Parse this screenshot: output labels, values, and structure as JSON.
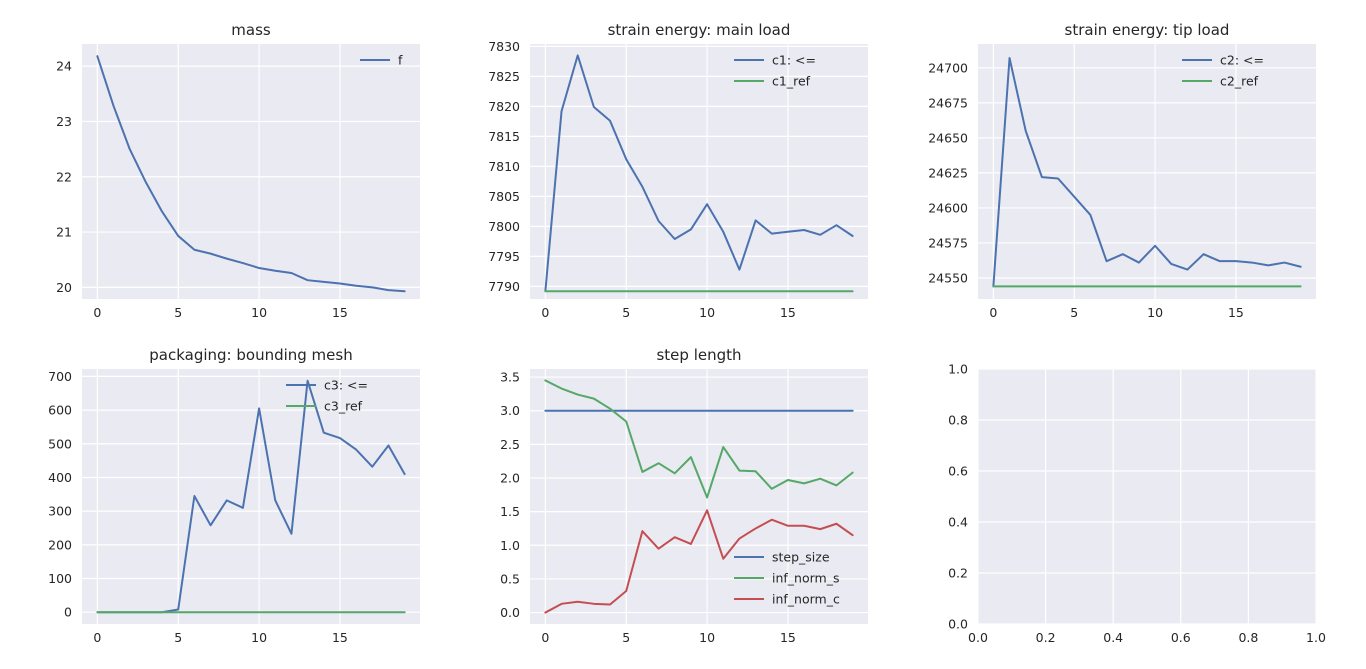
{
  "chart_data": [
    {
      "type": "line",
      "title": "mass",
      "x": [
        0,
        1,
        2,
        3,
        4,
        5,
        6,
        7,
        8,
        9,
        10,
        11,
        12,
        13,
        14,
        15,
        16,
        17,
        18,
        19
      ],
      "xlim": [
        -0.95,
        19.95
      ],
      "xticks": [
        0,
        5,
        10,
        15
      ],
      "ylim": [
        19.79,
        24.4
      ],
      "yticks": [
        20,
        21,
        22,
        23,
        24
      ],
      "grid": true,
      "legend": "top-right",
      "series": [
        {
          "name": "f",
          "color": "#4C72B0",
          "values": [
            24.18,
            23.28,
            22.5,
            21.9,
            21.37,
            20.93,
            20.68,
            20.61,
            20.52,
            20.44,
            20.35,
            20.3,
            20.26,
            20.13,
            20.1,
            20.07,
            20.03,
            20.0,
            19.95,
            19.93
          ]
        }
      ]
    },
    {
      "type": "line",
      "title": "strain energy: main load",
      "x": [
        0,
        1,
        2,
        3,
        4,
        5,
        6,
        7,
        8,
        9,
        10,
        11,
        12,
        13,
        14,
        15,
        16,
        17,
        18,
        19
      ],
      "xlim": [
        -0.95,
        19.95
      ],
      "xticks": [
        0,
        5,
        10,
        15
      ],
      "ylim": [
        7787.9,
        7830.4
      ],
      "yticks": [
        7790,
        7795,
        7800,
        7805,
        7810,
        7815,
        7820,
        7825,
        7830
      ],
      "grid": true,
      "legend": "top-right",
      "series": [
        {
          "name": "c1: <=",
          "color": "#4C72B0",
          "values": [
            7789.2,
            7819.2,
            7828.5,
            7819.9,
            7817.6,
            7811.2,
            7806.6,
            7800.9,
            7797.9,
            7799.5,
            7803.7,
            7799.1,
            7792.8,
            7801.0,
            7798.8,
            7799.1,
            7799.4,
            7798.6,
            7800.2,
            7798.4
          ]
        },
        {
          "name": "c1_ref",
          "color": "#55A868",
          "values": [
            7789.2,
            7789.2,
            7789.2,
            7789.2,
            7789.2,
            7789.2,
            7789.2,
            7789.2,
            7789.2,
            7789.2,
            7789.2,
            7789.2,
            7789.2,
            7789.2,
            7789.2,
            7789.2,
            7789.2,
            7789.2,
            7789.2,
            7789.2
          ]
        }
      ]
    },
    {
      "type": "line",
      "title": "strain energy: tip load",
      "x": [
        0,
        1,
        2,
        3,
        4,
        5,
        6,
        7,
        8,
        9,
        10,
        11,
        12,
        13,
        14,
        15,
        16,
        17,
        18,
        19
      ],
      "xlim": [
        -0.95,
        19.95
      ],
      "xticks": [
        0,
        5,
        10,
        15
      ],
      "ylim": [
        24535,
        24717
      ],
      "yticks": [
        24550,
        24575,
        24600,
        24625,
        24650,
        24675,
        24700
      ],
      "grid": true,
      "legend": "top-right",
      "series": [
        {
          "name": "c2: <=",
          "color": "#4C72B0",
          "values": [
            24544,
            24707,
            24655,
            24622,
            24621,
            24608,
            24595,
            24562,
            24567,
            24561,
            24573,
            24560,
            24556,
            24567,
            24562,
            24562,
            24561,
            24559,
            24561,
            24558
          ]
        },
        {
          "name": "c2_ref",
          "color": "#55A868",
          "values": [
            24544,
            24544,
            24544,
            24544,
            24544,
            24544,
            24544,
            24544,
            24544,
            24544,
            24544,
            24544,
            24544,
            24544,
            24544,
            24544,
            24544,
            24544,
            24544,
            24544
          ]
        }
      ]
    },
    {
      "type": "line",
      "title": "packaging: bounding mesh",
      "x": [
        0,
        1,
        2,
        3,
        4,
        5,
        6,
        7,
        8,
        9,
        10,
        11,
        12,
        13,
        14,
        15,
        16,
        17,
        18,
        19
      ],
      "xlim": [
        -0.95,
        19.95
      ],
      "xticks": [
        0,
        5,
        10,
        15
      ],
      "ylim": [
        -35,
        722
      ],
      "yticks": [
        0,
        100,
        200,
        300,
        400,
        500,
        600,
        700
      ],
      "grid": true,
      "legend": "top-right",
      "series": [
        {
          "name": "c3: <=",
          "color": "#4C72B0",
          "values": [
            0,
            0,
            0,
            0,
            0,
            8,
            345,
            258,
            332,
            310,
            605,
            332,
            233,
            687,
            533,
            517,
            483,
            432,
            495,
            410
          ]
        },
        {
          "name": "c3_ref",
          "color": "#55A868",
          "values": [
            0,
            0,
            0,
            0,
            0,
            0,
            0,
            0,
            0,
            0,
            0,
            0,
            0,
            0,
            0,
            0,
            0,
            0,
            0,
            0
          ]
        }
      ]
    },
    {
      "type": "line",
      "title": "step length",
      "x": [
        0,
        1,
        2,
        3,
        4,
        5,
        6,
        7,
        8,
        9,
        10,
        11,
        12,
        13,
        14,
        15,
        16,
        17,
        18,
        19
      ],
      "xlim": [
        -0.95,
        19.95
      ],
      "xticks": [
        0,
        5,
        10,
        15
      ],
      "ylim": [
        -0.17,
        3.62
      ],
      "yticks": [
        0.0,
        0.5,
        1.0,
        1.5,
        2.0,
        2.5,
        3.0,
        3.5
      ],
      "yticklabels": [
        "0.0",
        "0.5",
        "1.0",
        "1.5",
        "2.0",
        "2.5",
        "3.0",
        "3.5"
      ],
      "grid": true,
      "legend": "bottom-right",
      "series": [
        {
          "name": "step_size",
          "color": "#4C72B0",
          "values": [
            3.0,
            3.0,
            3.0,
            3.0,
            3.0,
            3.0,
            3.0,
            3.0,
            3.0,
            3.0,
            3.0,
            3.0,
            3.0,
            3.0,
            3.0,
            3.0,
            3.0,
            3.0,
            3.0,
            3.0
          ]
        },
        {
          "name": "inf_norm_s",
          "color": "#55A868",
          "values": [
            3.45,
            3.33,
            3.24,
            3.18,
            3.03,
            2.84,
            2.09,
            2.22,
            2.07,
            2.31,
            1.71,
            2.46,
            2.11,
            2.1,
            1.84,
            1.97,
            1.92,
            1.99,
            1.89,
            2.08
          ]
        },
        {
          "name": "inf_norm_c",
          "color": "#C44E52",
          "values": [
            0.0,
            0.13,
            0.16,
            0.13,
            0.12,
            0.32,
            1.21,
            0.95,
            1.12,
            1.02,
            1.52,
            0.8,
            1.1,
            1.25,
            1.38,
            1.29,
            1.29,
            1.24,
            1.32,
            1.15
          ]
        }
      ]
    },
    {
      "type": "line",
      "title": "",
      "x": [],
      "xlim": [
        0,
        1
      ],
      "xticks": [
        0.0,
        0.2,
        0.4,
        0.6,
        0.8,
        1.0
      ],
      "xticklabels": [
        "0.0",
        "0.2",
        "0.4",
        "0.6",
        "0.8",
        "1.0"
      ],
      "ylim": [
        0,
        1
      ],
      "yticks": [
        0.0,
        0.2,
        0.4,
        0.6,
        0.8,
        1.0
      ],
      "yticklabels": [
        "0.0",
        "0.2",
        "0.4",
        "0.6",
        "0.8",
        "1.0"
      ],
      "grid": true,
      "legend": "none",
      "series": []
    }
  ]
}
